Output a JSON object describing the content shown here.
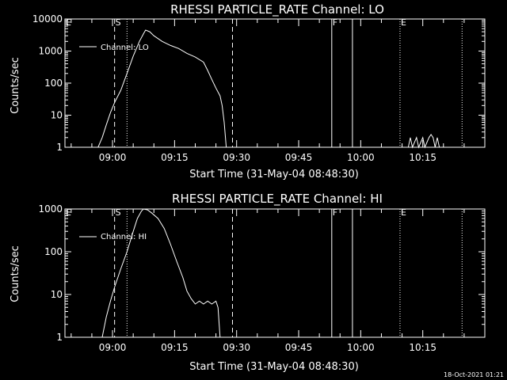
{
  "chart_data": [
    {
      "type": "line",
      "title": "RHESSI PARTICLE_RATE Channel: LO",
      "xlabel": "Start Time (31-May-04 08:48:30)",
      "ylabel": "Counts/sec",
      "yscale": "log",
      "ylim": [
        1,
        10000
      ],
      "xlim": [
        "08:48:30",
        "10:30:00"
      ],
      "yticks": [
        "1",
        "10",
        "100",
        "1000",
        "10000"
      ],
      "xticks": [
        "09:00",
        "09:15",
        "09:30",
        "09:45",
        "10:00",
        "10:15"
      ],
      "legend": {
        "position": "top-left",
        "entry": "Channel: LO"
      },
      "grid": false,
      "vlines": [
        {
          "time": "08:48:30",
          "style": "dotted",
          "label": "E"
        },
        {
          "time": "09:00:30",
          "style": "dashed",
          "label": "S"
        },
        {
          "time": "09:03:30",
          "style": "dotted",
          "label": ""
        },
        {
          "time": "09:29:00",
          "style": "dashed",
          "label": ""
        },
        {
          "time": "09:53:00",
          "style": "solid",
          "label": "F"
        },
        {
          "time": "09:58:00",
          "style": "solid",
          "label": ""
        },
        {
          "time": "10:09:30",
          "style": "dotted",
          "label": "E"
        },
        {
          "time": "10:24:30",
          "style": "dotted",
          "label": ""
        }
      ],
      "series": [
        {
          "points": [
            [
              "08:56:30",
              1
            ],
            [
              "08:57:30",
              2
            ],
            [
              "08:58:30",
              5
            ],
            [
              "08:59:30",
              12
            ],
            [
              "09:00:30",
              25
            ],
            [
              "09:02:00",
              60
            ],
            [
              "09:03:30",
              200
            ],
            [
              "09:05:00",
              700
            ],
            [
              "09:06:30",
              2000
            ],
            [
              "09:07:30",
              3500
            ],
            [
              "09:08:00",
              4500
            ],
            [
              "09:09:00",
              4000
            ],
            [
              "09:10:00",
              3000
            ],
            [
              "09:12:00",
              2000
            ],
            [
              "09:14:00",
              1500
            ],
            [
              "09:16:00",
              1200
            ],
            [
              "09:18:00",
              850
            ],
            [
              "09:20:00",
              650
            ],
            [
              "09:22:00",
              450
            ],
            [
              "09:23:00",
              250
            ],
            [
              "09:24:00",
              130
            ],
            [
              "09:25:00",
              70
            ],
            [
              "09:26:00",
              40
            ],
            [
              "09:26:30",
              20
            ],
            [
              "09:27:00",
              6
            ],
            [
              "09:27:30",
              1
            ]
          ]
        },
        {
          "points": [
            [
              "10:11:30",
              1
            ],
            [
              "10:12:00",
              2
            ],
            [
              "10:12:30",
              1
            ],
            [
              "10:13:30",
              2
            ],
            [
              "10:14:00",
              1
            ],
            [
              "10:15:00",
              2
            ],
            [
              "10:15:30",
              1
            ],
            [
              "10:16:30",
              2
            ],
            [
              "10:17:00",
              2.5
            ],
            [
              "10:17:30",
              2
            ],
            [
              "10:18:00",
              1
            ],
            [
              "10:18:30",
              2
            ],
            [
              "10:19:00",
              1
            ]
          ]
        }
      ]
    },
    {
      "type": "line",
      "title": "RHESSI PARTICLE_RATE Channel: HI",
      "xlabel": "Start Time (31-May-04 08:48:30)",
      "ylabel": "Counts/sec",
      "yscale": "log",
      "ylim": [
        1,
        1000
      ],
      "xlim": [
        "08:48:30",
        "10:30:00"
      ],
      "yticks": [
        "1",
        "10",
        "100",
        "1000"
      ],
      "xticks": [
        "09:00",
        "09:15",
        "09:30",
        "09:45",
        "10:00",
        "10:15"
      ],
      "legend": {
        "position": "top-left",
        "entry": "Channel: HI"
      },
      "grid": false,
      "vlines": [
        {
          "time": "08:48:30",
          "style": "dotted",
          "label": "E"
        },
        {
          "time": "09:00:30",
          "style": "dashed",
          "label": "S"
        },
        {
          "time": "09:03:30",
          "style": "dotted",
          "label": ""
        },
        {
          "time": "09:29:00",
          "style": "dashed",
          "label": ""
        },
        {
          "time": "09:53:00",
          "style": "solid",
          "label": "F"
        },
        {
          "time": "09:58:00",
          "style": "solid",
          "label": ""
        },
        {
          "time": "10:09:30",
          "style": "dotted",
          "label": "E"
        },
        {
          "time": "10:24:30",
          "style": "dotted",
          "label": ""
        }
      ],
      "series": [
        {
          "points": [
            [
              "08:57:30",
              1
            ],
            [
              "08:58:30",
              3
            ],
            [
              "08:59:30",
              7
            ],
            [
              "09:00:30",
              15
            ],
            [
              "09:02:00",
              40
            ],
            [
              "09:03:30",
              100
            ],
            [
              "09:05:00",
              300
            ],
            [
              "09:06:00",
              600
            ],
            [
              "09:07:00",
              900
            ],
            [
              "09:07:30",
              1000
            ],
            [
              "09:08:30",
              950
            ],
            [
              "09:09:30",
              800
            ],
            [
              "09:11:00",
              600
            ],
            [
              "09:12:30",
              350
            ],
            [
              "09:14:00",
              150
            ],
            [
              "09:15:30",
              60
            ],
            [
              "09:17:00",
              25
            ],
            [
              "09:18:00",
              12
            ],
            [
              "09:19:00",
              8
            ],
            [
              "09:20:00",
              6
            ],
            [
              "09:21:00",
              7
            ],
            [
              "09:22:00",
              6
            ],
            [
              "09:23:00",
              7
            ],
            [
              "09:24:00",
              6
            ],
            [
              "09:25:00",
              7
            ],
            [
              "09:25:30",
              5
            ],
            [
              "09:26:00",
              1
            ]
          ]
        }
      ]
    }
  ],
  "timestamp": "18-Oct-2021 01:21"
}
